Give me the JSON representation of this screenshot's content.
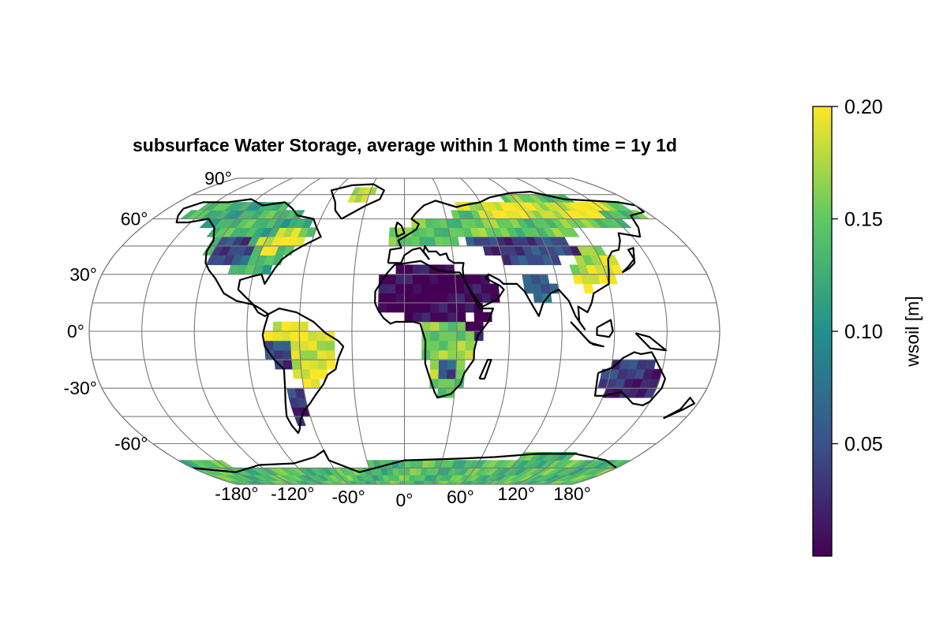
{
  "title": "subsurface Water Storage, average within 1 Month time = 1y 1d",
  "projection": "robinson",
  "map": {
    "lat_tick_labels": [
      "90°",
      "60°",
      "30°",
      "0°",
      "-30°",
      "-60°"
    ],
    "lat_tick_values": [
      90,
      60,
      30,
      0,
      -30,
      -60
    ],
    "lon_tick_labels": [
      "-180°",
      "-120°",
      "-60°",
      "0°",
      "60°",
      "120°",
      "180°"
    ],
    "lon_tick_values": [
      -180,
      -120,
      -60,
      0,
      60,
      120,
      180
    ],
    "gridlines": true,
    "coastlines": true,
    "gridline_color": "#7a7a7a",
    "coastline_color": "#000000"
  },
  "colorbar": {
    "label": "wsoil [m]",
    "range": [
      0,
      0.2
    ],
    "tick_values": [
      0.05,
      0.1,
      0.15,
      0.2
    ],
    "tick_labels": [
      "0.05",
      "0.10",
      "0.15",
      "0.20"
    ],
    "colormap": "viridis",
    "colormap_stops": [
      "#440154",
      "#3b528b",
      "#21918c",
      "#5ec962",
      "#fde725"
    ],
    "orientation": "vertical",
    "placement": "right"
  },
  "chart_data": {
    "type": "heatmap",
    "title": "subsurface Water Storage, average within 1 Month time = 1y 1d",
    "variable_label": "wsoil [m]",
    "value_range": [
      0,
      0.2
    ],
    "note_regions": [
      {
        "region": "North Africa / Arabia",
        "value": 0.0
      },
      {
        "region": "Siberia",
        "value": 0.19
      },
      {
        "region": "Central Asia",
        "value": 0.05
      },
      {
        "region": "Canada",
        "value": 0.15
      },
      {
        "region": "Amazon",
        "value": 0.19
      },
      {
        "region": "Southern Africa",
        "value": 0.18
      },
      {
        "region": "Australia",
        "value": 0.03
      },
      {
        "region": "Antarctica",
        "value": 0.14
      }
    ]
  }
}
